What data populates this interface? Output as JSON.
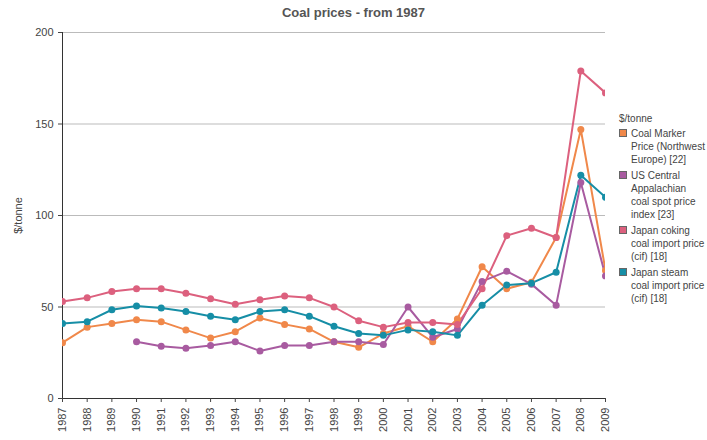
{
  "chart_data": {
    "type": "line",
    "title": "Coal prices - from 1987",
    "y_label": "$/tonne",
    "legend_title": "$/tonne",
    "x": [
      1987,
      1988,
      1989,
      1990,
      1991,
      1992,
      1993,
      1994,
      1995,
      1996,
      1997,
      1998,
      1999,
      2000,
      2001,
      2002,
      2003,
      2004,
      2005,
      2006,
      2007,
      2008,
      2009
    ],
    "xlim": [
      1987,
      2009
    ],
    "xticks": [
      1987,
      1988,
      1989,
      1990,
      1991,
      1992,
      1993,
      1994,
      1995,
      1996,
      1997,
      1998,
      1999,
      2000,
      2001,
      2002,
      2003,
      2004,
      2005,
      2006,
      2007,
      2008,
      2009
    ],
    "ylim": [
      0,
      200
    ],
    "yticks": [
      0,
      50,
      100,
      150,
      200
    ],
    "grid": true,
    "legend": "right",
    "marker": "circle",
    "series": [
      {
        "name": "Coal Marker Price (Northwest Europe) [22]",
        "color": "#f0884a",
        "values": [
          30.5,
          39,
          41,
          43,
          42,
          37.5,
          33,
          36.5,
          44,
          40.5,
          38,
          31,
          28,
          35.5,
          39.5,
          31,
          43.5,
          72,
          60,
          63.5,
          88,
          147,
          70
        ]
      },
      {
        "name": "US Central Appalachian coal spot price index [23]",
        "color": "#a85ba0",
        "values": [
          null,
          null,
          null,
          31,
          28.5,
          27.5,
          29,
          31,
          26,
          29,
          29,
          31,
          31,
          29.5,
          50,
          33.5,
          38,
          64,
          69.5,
          62.5,
          51,
          118,
          67
        ]
      },
      {
        "name": "Japan coking coal import price (cif) [18]",
        "color": "#dc607e",
        "values": [
          53,
          55,
          58.5,
          60,
          60,
          57.5,
          54.5,
          51.5,
          54,
          56,
          55,
          50,
          42.5,
          39,
          41.5,
          41.5,
          40.5,
          60,
          89,
          93,
          88,
          179,
          167
        ]
      },
      {
        "name": "Japan steam coal import price (cif) [18]",
        "color": "#168ea6",
        "values": [
          41,
          42,
          48.5,
          50.5,
          49.5,
          47.5,
          45,
          43,
          47.5,
          48.5,
          45,
          39.5,
          35.5,
          34.5,
          37.5,
          36.5,
          34.5,
          51,
          62,
          63,
          69,
          122,
          110
        ]
      }
    ]
  }
}
